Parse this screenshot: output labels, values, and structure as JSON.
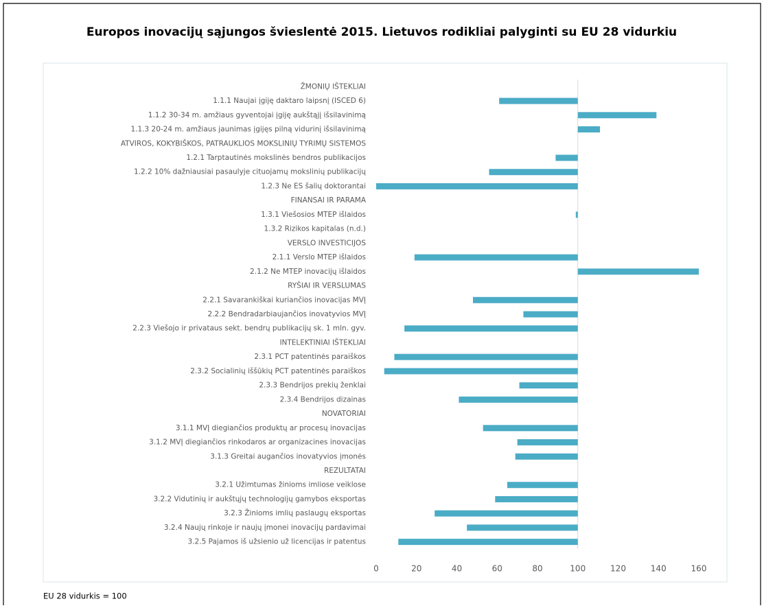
{
  "chart_data": {
    "type": "hbar",
    "title": "Europos inovacijų sąjungos švieslentė 2015. Lietuvos rodikliai palyginti su EU 28 vidurkiu",
    "note": "EU 28 vidurkis = 100",
    "categories": [
      "ŽMONIŲ IŠTEKLIAI",
      "1.1.1 Naujai įgiję daktaro laipsnį (ISCED 6)",
      "1.1.2 30-34 m. amžiaus gyventojai įgiję aukštąjį išsilavinimą",
      "1.1.3 20-24 m. amžiaus jaunimas įgijęs pilną vidurinį išsilavinimą",
      "ATVIROS, KOKYBIŠKOS, PATRAUKLIOS MOKSLINIŲ TYRIMŲ SISTEMOS",
      "1.2.1 Tarptautinės mokslinės bendros publikacijos",
      "1.2.2 10% dažniausiai pasaulyje cituojamų mokslinių publikacijų",
      "1.2.3 Ne ES šalių doktorantai",
      "FINANSAI IR PARAMA",
      "1.3.1 Viešosios MTEP išlaidos",
      "1.3.2 Rizikos kapitalas (n.d.)",
      "VERSLO INVESTICIJOS",
      "2.1.1 Verslo MTEP išlaidos",
      "2.1.2 Ne MTEP inovacijų išlaidos",
      "RYŠIAI IR VERSLUMAS",
      "2.2.1 Savarankiškai kuriančios inovacijas MVĮ",
      "2.2.2 Bendradarbiaujančios inovatyvios MVĮ",
      "2.2.3 Viešojo ir privataus sekt. bendrų publikacijų sk. 1 mln. gyv.",
      "INTELEKTINIAI IŠTEKLIAI",
      "2.3.1 PCT patentinės paraiškos",
      "2.3.2 Socialinių iššūkių PCT patentinės paraiškos",
      "2.3.3 Bendrijos prekių ženklai",
      "2.3.4 Bendrijos dizainas",
      "NOVATORIAI",
      "3.1.1 MVĮ diegiančios produktų ar procesų inovacijas",
      "3.1.2 MVĮ diegiančios rinkodaros ar organizacines inovacijas",
      "3.1.3 Greitai augančios inovatyvios įmonės",
      "REZULTATAI",
      "3.2.1 Užimtumas žinioms imliose veiklose",
      "3.2.2 Vidutinių ir aukštųjų technologijų gamybos eksportas",
      "3.2.3 Žinioms imlių paslaugų eksportas",
      "3.2.4 Naujų rinkoje ir naujų įmonei inovacijų pardavimai",
      "3.2.5 Pajamos iš užsienio už licencijas ir patentus"
    ],
    "values": [
      null,
      61,
      139,
      111,
      null,
      89,
      56,
      0,
      null,
      99,
      null,
      null,
      19,
      160,
      null,
      48,
      73,
      14,
      null,
      9,
      4,
      71,
      41,
      null,
      53,
      70,
      69,
      null,
      65,
      59,
      29,
      45,
      11
    ],
    "color": "#4bacc6",
    "bar_origin": 100,
    "xlim": [
      0,
      160
    ],
    "xticks": [
      0,
      20,
      40,
      60,
      80,
      100,
      120,
      140,
      160
    ]
  }
}
